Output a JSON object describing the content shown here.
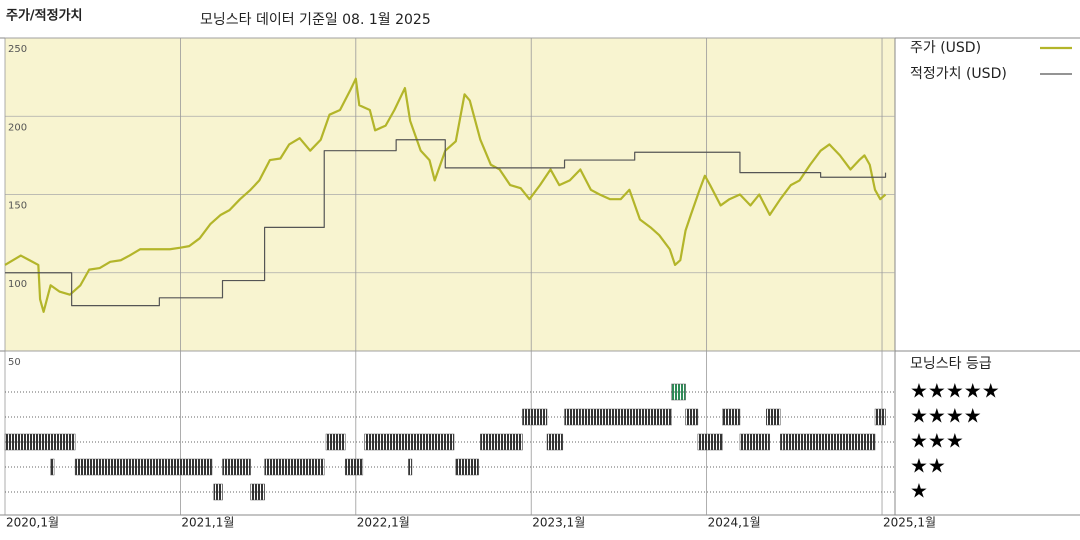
{
  "chart_data": {
    "type": "line",
    "title": "주가/적정가치",
    "subtitle": "모닝스타 데이터 기준일 08. 1월 2025",
    "xlim": [
      2020.0,
      2025.074
    ],
    "xticks": [
      {
        "value": 2020,
        "label": "2020,1월"
      },
      {
        "value": 2021,
        "label": "2021,1월"
      },
      {
        "value": 2022,
        "label": "2022,1월"
      },
      {
        "value": 2023,
        "label": "2023,1월"
      },
      {
        "value": 2024,
        "label": "2024,1월"
      },
      {
        "value": 2025,
        "label": "2025,1월"
      }
    ],
    "ylim": [
      50,
      250
    ],
    "yticks": [
      50,
      100,
      150,
      200,
      250
    ],
    "grid": true,
    "series": [
      {
        "name": "주가 (USD)",
        "color": "#b3b52a",
        "step": false,
        "x": [
          2020.0,
          2020.09,
          2020.14,
          2020.19,
          2020.2,
          2020.22,
          2020.26,
          2020.31,
          2020.37,
          2020.43,
          2020.48,
          2020.54,
          2020.6,
          2020.66,
          2020.71,
          2020.77,
          2020.83,
          2020.88,
          2020.94,
          2021.0,
          2021.05,
          2021.11,
          2021.17,
          2021.23,
          2021.28,
          2021.34,
          2021.4,
          2021.45,
          2021.51,
          2021.57,
          2021.62,
          2021.68,
          2021.74,
          2021.8,
          2021.85,
          2021.91,
          2021.97,
          2022.0,
          2022.02,
          2022.08,
          2022.11,
          2022.17,
          2022.22,
          2022.28,
          2022.31,
          2022.37,
          2022.42,
          2022.45,
          2022.51,
          2022.57,
          2022.62,
          2022.65,
          2022.71,
          2022.77,
          2022.82,
          2022.88,
          2022.94,
          2022.99,
          2023.05,
          2023.11,
          2023.16,
          2023.22,
          2023.28,
          2023.34,
          2023.39,
          2023.45,
          2023.51,
          2023.56,
          2023.62,
          2023.68,
          2023.73,
          2023.79,
          2023.82,
          2023.85,
          2023.88,
          2023.91,
          2023.96,
          2023.99,
          2024.02,
          2024.08,
          2024.13,
          2024.19,
          2024.25,
          2024.3,
          2024.36,
          2024.42,
          2024.48,
          2024.53,
          2024.59,
          2024.65,
          2024.7,
          2024.76,
          2024.82,
          2024.87,
          2024.9,
          2024.93,
          2024.96,
          2024.99,
          2025.02
        ],
        "values": [
          105,
          111,
          108,
          105,
          83,
          75,
          92,
          88,
          86,
          92,
          102,
          103,
          107,
          108,
          111,
          115,
          115,
          115,
          115,
          116,
          117,
          122,
          131,
          137,
          140,
          147,
          153,
          159,
          172,
          173,
          182,
          186,
          178,
          185,
          201,
          204,
          217,
          224,
          207,
          204,
          191,
          194,
          204,
          218,
          197,
          178,
          172,
          159,
          178,
          184,
          214,
          210,
          185,
          169,
          166,
          156,
          154,
          147,
          156,
          166,
          156,
          159,
          166,
          153,
          150,
          147,
          147,
          153,
          134,
          129,
          124,
          115,
          105,
          108,
          127,
          137,
          153,
          162,
          156,
          143,
          147,
          150,
          143,
          150,
          137,
          147,
          156,
          159,
          169,
          178,
          182,
          175,
          166,
          172,
          175,
          169,
          153,
          147,
          150
        ]
      },
      {
        "name": "적정가치 (USD)",
        "color": "#555555",
        "step": true,
        "x": [
          2020.0,
          2020.38,
          2020.88,
          2021.24,
          2021.48,
          2021.82,
          2022.23,
          2022.51,
          2023.19,
          2023.59,
          2024.19,
          2024.65,
          2025.02
        ],
        "values": [
          100,
          79,
          84,
          95,
          129,
          178,
          185,
          167,
          172,
          177,
          164,
          161,
          164
        ]
      }
    ],
    "rating_title": "모닝스타 등급",
    "rating_labels": [
      "★★★★★",
      "★★★★",
      "★★★",
      "★★",
      "★"
    ],
    "rating_colors": [
      "#333333",
      "#333333",
      "#333333",
      "#333333",
      "#2e8b57"
    ],
    "ratings": {
      "start": [
        2020.0,
        2020.26,
        2020.4,
        2021.19,
        2021.24,
        2021.4,
        2021.48,
        2021.83,
        2021.94,
        2022.05,
        2022.3,
        2022.57,
        2022.71,
        2022.95,
        2023.09,
        2023.19,
        2023.28,
        2023.8,
        2023.88,
        2023.95,
        2024.09,
        2024.19,
        2024.34,
        2024.42,
        2024.44,
        2024.96
      ],
      "end": [
        2020.4,
        2020.28,
        2021.18,
        2021.24,
        2021.4,
        2021.48,
        2021.82,
        2021.94,
        2022.04,
        2022.56,
        2022.32,
        2022.7,
        2022.95,
        2023.09,
        2023.18,
        2023.28,
        2023.8,
        2023.88,
        2023.95,
        2024.09,
        2024.19,
        2024.36,
        2024.42,
        2024.44,
        2024.96,
        2025.02
      ],
      "values": [
        3,
        2,
        2,
        1,
        2,
        1,
        2,
        3,
        2,
        3,
        2,
        2,
        3,
        4,
        3,
        4,
        4,
        5,
        4,
        3,
        4,
        3,
        4,
        3,
        3,
        4
      ]
    }
  }
}
